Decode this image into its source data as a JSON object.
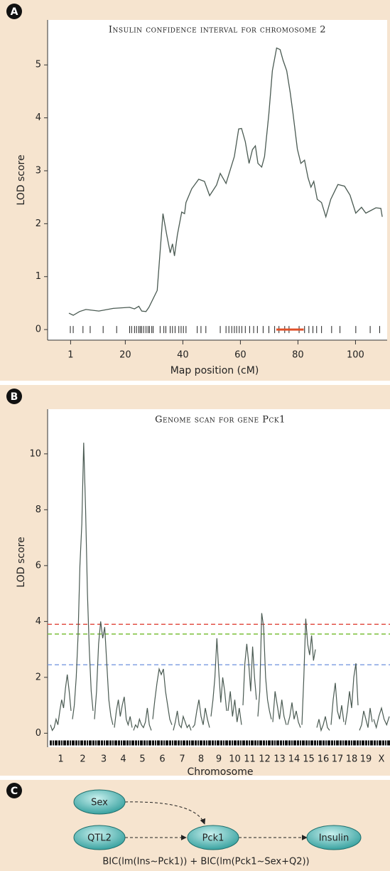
{
  "chart_data": [
    {
      "type": "line",
      "panel_label": "A",
      "title": "Insulin confidence interval for chromosome 2",
      "xlabel": "Map position (cM)",
      "ylabel": "LOD score",
      "x": [
        0.4,
        1.9,
        4.1,
        6.3,
        10.8,
        15.8,
        21.5,
        23.2,
        24.7,
        25.7,
        27.2,
        28.2,
        31.1,
        33.1,
        34.4,
        35.6,
        36.4,
        37.1,
        38.1,
        39.6,
        40.6,
        41.1,
        43.1,
        45.5,
        47.5,
        49.3,
        51.7,
        53.0,
        55.0,
        57.9,
        59.4,
        60.4,
        61.7,
        63.0,
        64.2,
        65.2,
        66.1,
        67.4,
        68.4,
        69.9,
        71.1,
        72.6,
        73.8,
        74.8,
        76.1,
        77.3,
        78.3,
        79.8,
        81.0,
        82.3,
        83.5,
        84.5,
        85.5,
        86.7,
        88.2,
        89.7,
        91.4,
        93.9,
        96.2,
        98.1,
        100.1,
        102.1,
        103.6,
        105.0,
        107.1,
        108.8,
        109.3
      ],
      "values": [
        0.31,
        0.27,
        0.34,
        0.38,
        0.35,
        0.4,
        0.42,
        0.39,
        0.44,
        0.35,
        0.34,
        0.42,
        0.74,
        2.19,
        1.79,
        1.45,
        1.62,
        1.39,
        1.79,
        2.22,
        2.19,
        2.4,
        2.66,
        2.84,
        2.8,
        2.53,
        2.73,
        2.95,
        2.76,
        3.27,
        3.79,
        3.8,
        3.55,
        3.14,
        3.4,
        3.47,
        3.14,
        3.07,
        3.27,
        4.08,
        4.89,
        5.32,
        5.29,
        5.09,
        4.89,
        4.48,
        4.08,
        3.41,
        3.14,
        3.2,
        2.87,
        2.69,
        2.8,
        2.46,
        2.4,
        2.13,
        2.46,
        2.74,
        2.71,
        2.54,
        2.2,
        2.31,
        2.2,
        2.24,
        2.3,
        2.29,
        2.13
      ],
      "color": "#4a5a52",
      "markers": [
        0.9,
        1.9,
        5.3,
        7.8,
        12.3,
        17.0,
        21.5,
        22.2,
        23.2,
        23.9,
        24.7,
        25.2,
        25.7,
        26.4,
        27.2,
        27.9,
        28.4,
        29.2,
        29.7,
        32.1,
        33.4,
        34.1,
        35.6,
        36.4,
        37.3,
        38.6,
        39.4,
        40.2,
        41.1,
        45.0,
        46.3,
        48.0,
        53.0,
        55.0,
        56.0,
        57.0,
        57.9,
        58.7,
        59.6,
        60.5,
        61.7,
        63.2,
        64.6,
        65.9,
        67.9,
        69.9,
        71.9,
        73.4,
        75.4,
        76.9,
        80.4,
        82.3,
        83.8,
        85.2,
        86.5,
        88.2,
        91.7,
        94.6,
        100.1,
        105.1,
        108.4
      ],
      "interval": {
        "x": [
          72.5,
          82
        ],
        "y": 0,
        "color": "#e0522a"
      },
      "xlim": [
        -7,
        111
      ],
      "xticks": [
        1,
        20,
        40,
        60,
        80,
        100
      ],
      "ylim": [
        -0.2,
        5.85
      ],
      "yticks": [
        0,
        1,
        2,
        3,
        4,
        5
      ]
    },
    {
      "type": "line",
      "panel_label": "B",
      "title": "Genome scan for gene Pck1",
      "xlabel": "Chromosome",
      "ylabel": "LOD score",
      "categories": [
        "1",
        "2",
        "3",
        "4",
        "5",
        "6",
        "7",
        "8",
        "9",
        "10",
        "11",
        "12",
        "13",
        "14",
        "15",
        "16",
        "17",
        "18",
        "19",
        "X"
      ],
      "values": [
        [
          0.3,
          0.1,
          0.2,
          0.5,
          0.3,
          0.8,
          1.2,
          0.9,
          1.6,
          2.1,
          1.5,
          0.8
        ],
        [
          0.5,
          1.0,
          2.0,
          3.5,
          6.0,
          7.5,
          10.4,
          8.0,
          5.0,
          3.0,
          1.5,
          0.8
        ],
        [
          0.5,
          1.5,
          3.2,
          4.0,
          3.4,
          3.8,
          2.5,
          1.2,
          0.6,
          0.3
        ],
        [
          0.2,
          0.8,
          1.2,
          0.6,
          1.0,
          1.3,
          0.5,
          0.3,
          0.6,
          0.2
        ],
        [
          0.1,
          0.3,
          0.2,
          0.5,
          0.3,
          0.2,
          0.4,
          0.9,
          0.3,
          0.1
        ],
        [
          0.5,
          1.2,
          1.8,
          2.3,
          2.1,
          2.3,
          1.5,
          1.0,
          0.5,
          0.3
        ],
        [
          0.1,
          0.4,
          0.8,
          0.3,
          0.2,
          0.6,
          0.4,
          0.2,
          0.3,
          0.1
        ],
        [
          0.2,
          0.3,
          0.8,
          1.2,
          0.6,
          0.3,
          0.9,
          0.5,
          0.2
        ],
        [
          0.6,
          1.2,
          2.0,
          3.4,
          2.2,
          1.1,
          2.0,
          1.5,
          0.8
        ],
        [
          0.8,
          1.5,
          0.6,
          1.2,
          0.4,
          0.9,
          0.3
        ],
        [
          1.0,
          2.5,
          3.2,
          2.5,
          1.5,
          3.1,
          2.0,
          1.2
        ],
        [
          0.6,
          1.5,
          4.3,
          3.8,
          2.0,
          1.2,
          0.8,
          0.5
        ],
        [
          0.4,
          1.5,
          1.0,
          0.5,
          1.2,
          0.6,
          0.3
        ],
        [
          0.3,
          0.6,
          1.1,
          0.5,
          0.8,
          0.4,
          0.2
        ],
        [
          0.3,
          2.0,
          4.1,
          3.2,
          2.8,
          3.5,
          2.6,
          3.0
        ],
        [
          0.2,
          0.5,
          0.1,
          0.3,
          0.6,
          0.2,
          0.1
        ],
        [
          0.3,
          1.2,
          1.8,
          0.8,
          0.5,
          1.0,
          0.4
        ],
        [
          0.3,
          0.8,
          1.5,
          0.9,
          2.0,
          2.5,
          1.0
        ],
        [
          0.1,
          0.3,
          0.8,
          0.5,
          0.2,
          0.9,
          0.4
        ],
        [
          0.5,
          0.2,
          0.6,
          0.9,
          0.5,
          0.3,
          0.6
        ]
      ],
      "color": "#4a5a52",
      "thresholds": [
        {
          "value": 3.9,
          "color": "#e0453a"
        },
        {
          "value": 3.55,
          "color": "#7bbf3a"
        },
        {
          "value": 2.45,
          "color": "#7a9ae0"
        }
      ],
      "ylim": [
        -0.5,
        11.6
      ],
      "yticks": [
        0,
        2,
        4,
        6,
        8,
        10
      ]
    }
  ],
  "diagram": {
    "panel_label": "C",
    "nodes": [
      {
        "label": "Sex"
      },
      {
        "label": "QTL2"
      },
      {
        "label": "Pck1"
      },
      {
        "label": "Insulin"
      }
    ],
    "caption": "BIC(lm(Ins~Pck1)) + BIC(lm(Pck1~Sex+Q2))"
  }
}
